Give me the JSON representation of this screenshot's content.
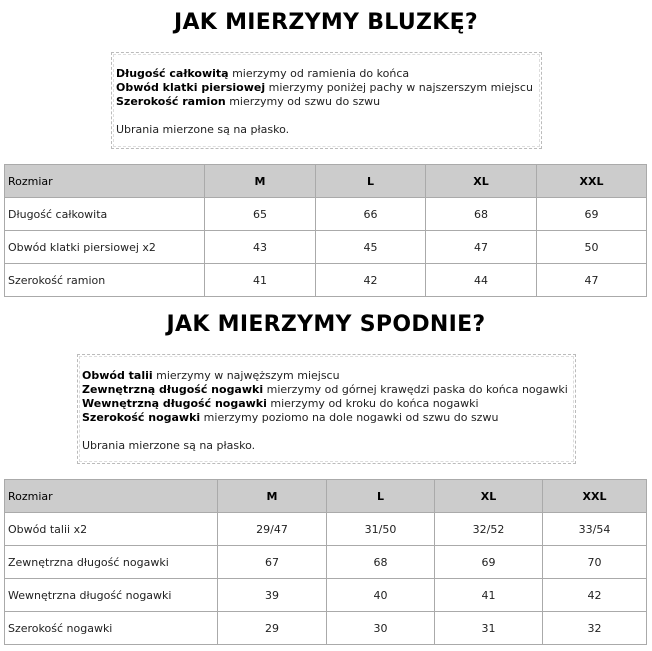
{
  "top": {
    "title": "JAK MIERZYMY BLUZKĘ?",
    "lines": [
      {
        "bold": "Długość całkowitą",
        "text": " mierzymy od ramienia do końca"
      },
      {
        "bold": "Obwód klatki piersiowej",
        "text": " mierzymy poniżej pachy w najszerszym miejscu"
      },
      {
        "bold": "Szerokość ramion",
        "text": " mierzymy od szwu do szwu"
      }
    ],
    "note": "Ubrania mierzone są na płasko.",
    "table": {
      "headers": [
        "Rozmiar",
        "M",
        "L",
        "XL",
        "XXL"
      ],
      "rows": [
        [
          "Długość całkowita",
          "65",
          "66",
          "68",
          "69"
        ],
        [
          "Obwód klatki piersiowej x2",
          "43",
          "45",
          "47",
          "50"
        ],
        [
          "Szerokość ramion",
          "41",
          "42",
          "44",
          "47"
        ]
      ]
    }
  },
  "bottom": {
    "title": "JAK MIERZYMY SPODNIE?",
    "lines": [
      {
        "bold": "Obwód talii",
        "text": " mierzymy w najwęższym miejscu"
      },
      {
        "bold": "Zewnętrzną długość nogawki",
        "text": " mierzymy od górnej krawędzi paska do końca nogawki"
      },
      {
        "bold": "Wewnętrzną długość nogawki",
        "text": " mierzymy od kroku do końca nogawki"
      },
      {
        "bold": "Szerokość nogawki",
        "text": " mierzymy poziomo na dole nogawki od szwu do szwu"
      }
    ],
    "note": "Ubrania mierzone są na płasko.",
    "table": {
      "headers": [
        "Rozmiar",
        "M",
        "L",
        "XL",
        "XXL"
      ],
      "rows": [
        [
          "Obwód talii x2",
          "29/47",
          "31/50",
          "32/52",
          "33/54"
        ],
        [
          "Zewnętrzna długość nogawki",
          "67",
          "68",
          "69",
          "70"
        ],
        [
          "Wewnętrzna długość nogawki",
          "39",
          "40",
          "41",
          "42"
        ],
        [
          "Szerokość nogawki",
          "29",
          "30",
          "31",
          "32"
        ]
      ]
    }
  }
}
